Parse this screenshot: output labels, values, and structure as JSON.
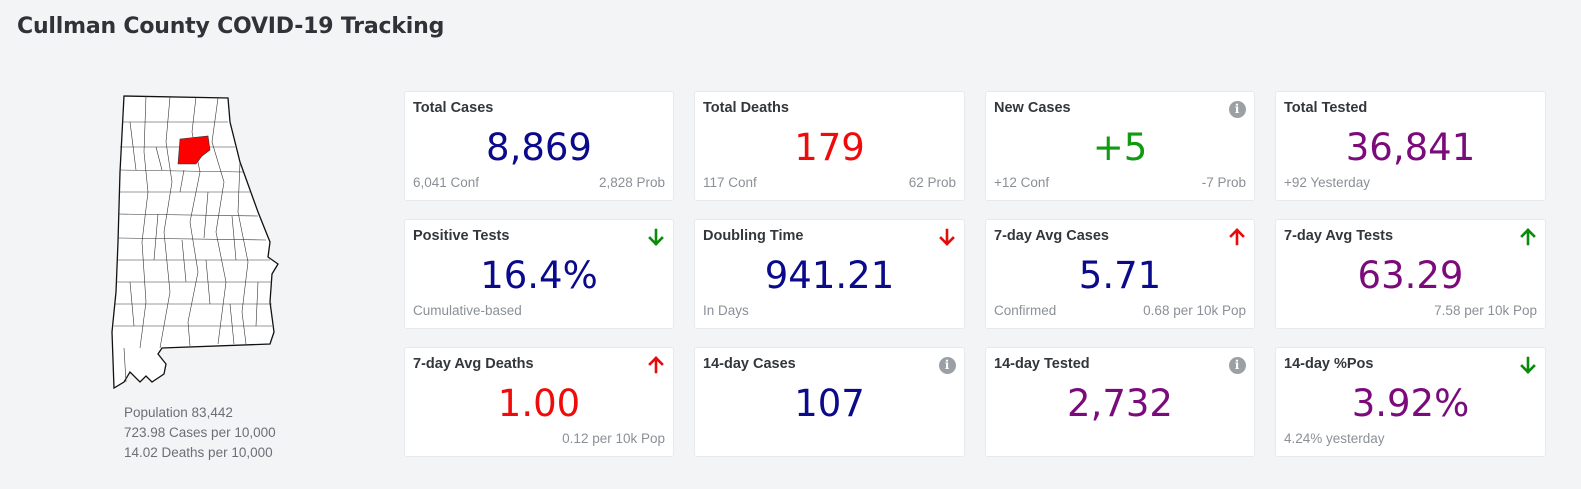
{
  "header": {
    "title": "Cullman County COVID-19 Tracking"
  },
  "colors": {
    "navy": "#0a0a8a",
    "red": "#f00a0a",
    "green": "#0f9a0f",
    "purple": "#7b0b7b",
    "arrow_red": "#e60b0b",
    "arrow_green": "#0a8a0a",
    "highlight_county": "#ff0000"
  },
  "map": {
    "description_icon": "alabama-county-map",
    "highlighted_county": "Cullman"
  },
  "population_info": {
    "population": "Population 83,442",
    "cases_per": "723.98 Cases per 10,000",
    "deaths_per": "14.02 Deaths per 10,000"
  },
  "cards": [
    {
      "label": "Total Cases",
      "value": "8,869",
      "color": "navy",
      "sub_left": "6,041 Conf",
      "sub_right": "2,828 Prob",
      "icon": ""
    },
    {
      "label": "Total Deaths",
      "value": "179",
      "color": "red",
      "sub_left": "117 Conf",
      "sub_right": "62 Prob",
      "icon": ""
    },
    {
      "label": "New Cases",
      "value": "+5",
      "color": "green",
      "sub_left": "+12 Conf",
      "sub_right": "-7 Prob",
      "icon": "info-icon"
    },
    {
      "label": "Total Tested",
      "value": "36,841",
      "color": "purple",
      "sub_left": "+92 Yesterday",
      "sub_right": "",
      "icon": ""
    },
    {
      "label": "Positive Tests",
      "value": "16.4%",
      "color": "navy",
      "sub_left": "Cumulative-based",
      "sub_right": "",
      "icon": "arrow-down-green-icon"
    },
    {
      "label": "Doubling Time",
      "value": "941.21",
      "color": "navy",
      "sub_left": "In Days",
      "sub_right": "",
      "icon": "arrow-down-red-icon"
    },
    {
      "label": "7-day Avg Cases",
      "value": "5.71",
      "color": "navy",
      "sub_left": "Confirmed",
      "sub_right": "0.68 per 10k Pop",
      "icon": "arrow-up-red-icon"
    },
    {
      "label": "7-day Avg Tests",
      "value": "63.29",
      "color": "purple",
      "sub_left": "",
      "sub_right": "7.58 per 10k Pop",
      "icon": "arrow-up-green-icon"
    },
    {
      "label": "7-day Avg Deaths",
      "value": "1.00",
      "color": "red",
      "sub_left": "",
      "sub_right": "0.12 per 10k Pop",
      "icon": "arrow-up-red-icon"
    },
    {
      "label": "14-day Cases",
      "value": "107",
      "color": "navy",
      "sub_left": "",
      "sub_right": "",
      "icon": "info-icon"
    },
    {
      "label": "14-day Tested",
      "value": "2,732",
      "color": "purple",
      "sub_left": "",
      "sub_right": "",
      "icon": "info-icon"
    },
    {
      "label": "14-day %Pos",
      "value": "3.92%",
      "color": "purple",
      "sub_left": "4.24% yesterday",
      "sub_right": "",
      "icon": "arrow-down-green-icon"
    }
  ]
}
